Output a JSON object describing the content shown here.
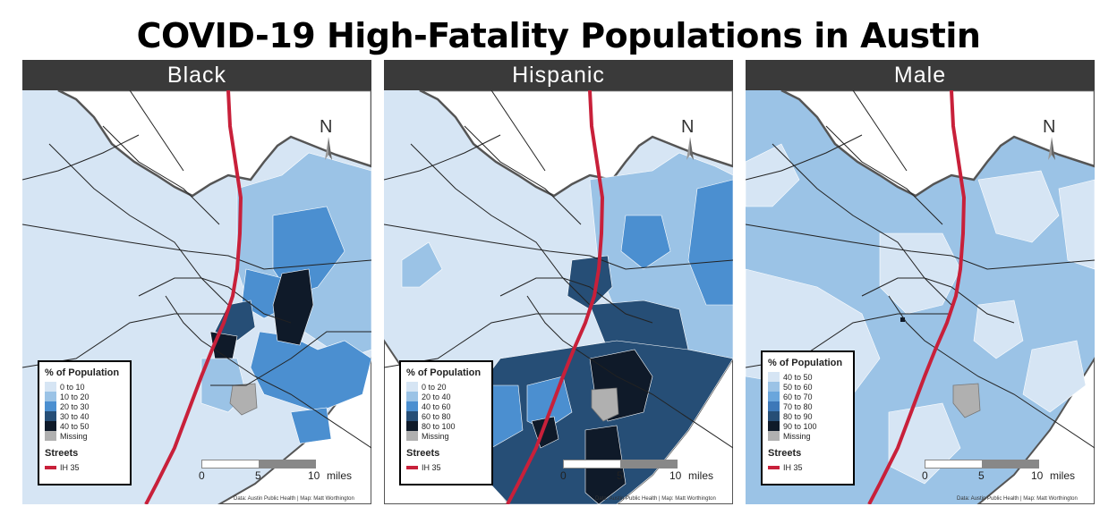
{
  "title": "COVID-19 High-Fatality Populations in Austin",
  "colors": {
    "class1": "#d6e5f4",
    "class2": "#9bc3e6",
    "class3": "#4b8fd0",
    "class4": "#264e76",
    "class5": "#0f1a29",
    "missing": "#b0b0b0",
    "ih35": "#c8203a",
    "header": "#3a3a3a"
  },
  "panels": [
    {
      "name": "Black",
      "legend_title": "% of Population",
      "legend_items": [
        "0 to 10",
        "10 to 20",
        "20 to 30",
        "30 to 40",
        "40 to 50",
        "Missing"
      ],
      "streets_title": "Streets",
      "street_label": "IH 35",
      "north": "N",
      "scale_labels": [
        "0",
        "5",
        "10",
        "miles"
      ],
      "credit": "Data: Austin Public Health | Map: Matt Worthington",
      "dominant_class": 1
    },
    {
      "name": "Hispanic",
      "legend_title": "% of Population",
      "legend_items": [
        "0 to 20",
        "20 to 40",
        "40 to 60",
        "60 to 80",
        "80 to 100",
        "Missing"
      ],
      "streets_title": "Streets",
      "street_label": "IH 35",
      "north": "N",
      "scale_labels": [
        "0",
        "5",
        "10",
        "miles"
      ],
      "credit": "Data: Austin Public Health | Map: Matt Worthington",
      "dominant_class": 1
    },
    {
      "name": "Male",
      "legend_title": "% of Population",
      "legend_items": [
        "40 to 50",
        "50 to 60",
        "60 to 70",
        "70 to 80",
        "80 to 90",
        "90 to 100",
        "Missing"
      ],
      "streets_title": "Streets",
      "street_label": "IH 35",
      "north": "N",
      "scale_labels": [
        "0",
        "5",
        "10",
        "miles"
      ],
      "credit": "Data: Austin Public Health | Map: Matt Worthington",
      "dominant_class": 2
    }
  ]
}
